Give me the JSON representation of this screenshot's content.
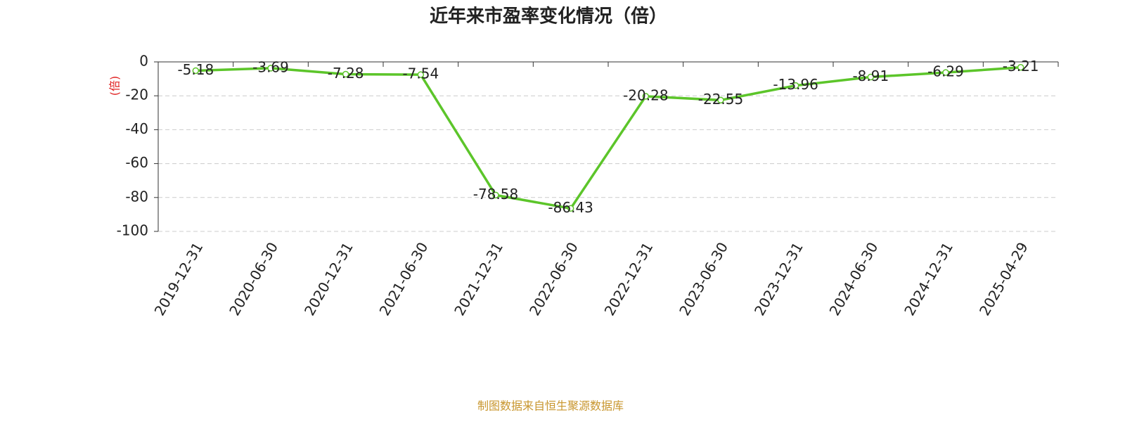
{
  "chart_data": {
    "type": "line",
    "title": "近年来市盈率变化情况（倍）",
    "y_label": "(倍)",
    "source": "制图数据来自恒生聚源数据库",
    "categories": [
      "2019-12-31",
      "2020-06-30",
      "2020-12-31",
      "2021-06-30",
      "2021-12-31",
      "2022-06-30",
      "2022-12-31",
      "2023-06-30",
      "2023-12-31",
      "2024-06-30",
      "2024-12-31",
      "2025-04-29"
    ],
    "values": [
      -5.18,
      -3.69,
      -7.28,
      -7.54,
      -78.58,
      -86.43,
      -20.28,
      -22.55,
      -13.96,
      -8.91,
      -6.29,
      -3.21
    ],
    "color": "#5cc52a",
    "ylim": [
      -100,
      0
    ],
    "yticks": [
      0,
      -20,
      -40,
      -60,
      -80,
      -100
    ],
    "grid": true
  }
}
